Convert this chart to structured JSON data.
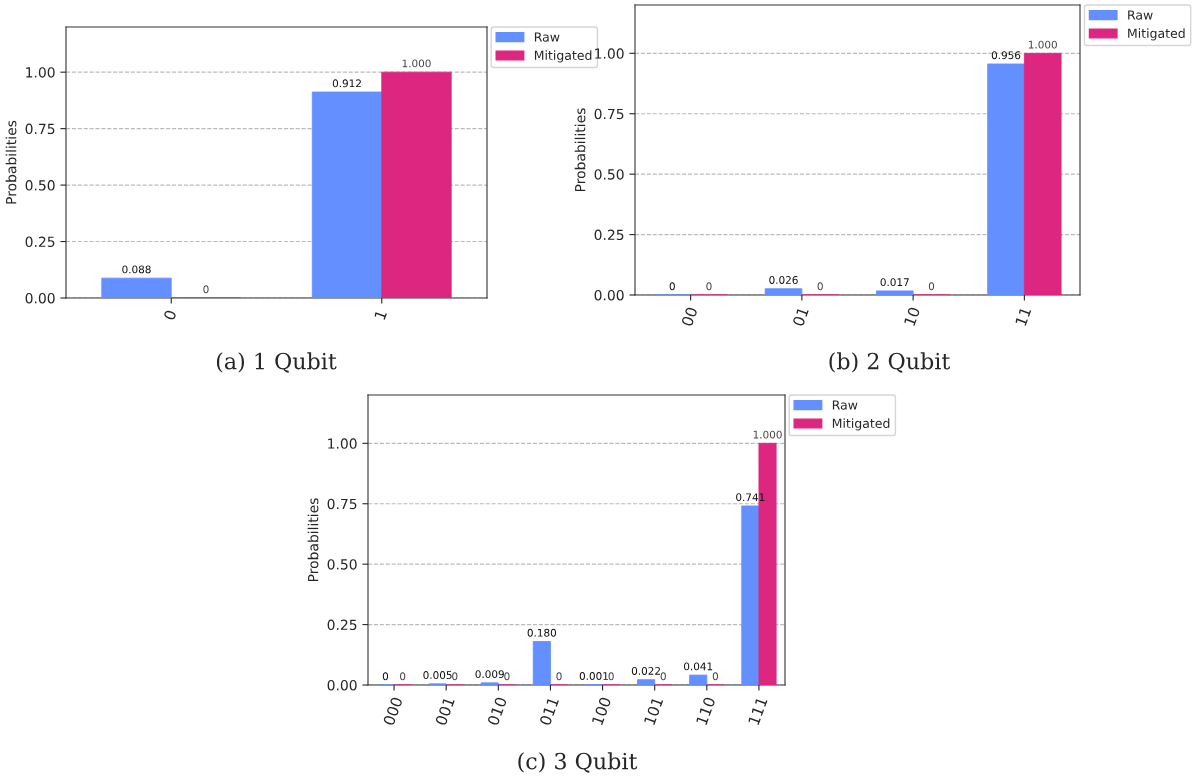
{
  "chart_data": [
    {
      "type": "bar",
      "ylabel": "Probabilities",
      "categories": [
        "0",
        "1"
      ],
      "ylim": [
        0,
        1.2
      ],
      "yticks": [
        {
          "value": 0,
          "label": "0.00"
        },
        {
          "value": 0.25,
          "label": "0.25"
        },
        {
          "value": 0.5,
          "label": "0.50"
        },
        {
          "value": 0.75,
          "label": "0.75"
        },
        {
          "value": 1,
          "label": "1.00"
        }
      ],
      "grid": "y",
      "legend": "top right",
      "annotations": [
        "(a) 1 Qubit"
      ],
      "series": [
        {
          "name": "Raw",
          "color": "#648fff",
          "values": [
            0.088,
            0.912
          ],
          "value_labels": [
            "0.088",
            "0.912"
          ]
        },
        {
          "name": "Mitigated",
          "color": "#dc267f",
          "values": [
            0,
            1.0
          ],
          "value_labels": [
            "0",
            "1.000"
          ]
        }
      ]
    },
    {
      "type": "bar",
      "ylabel": "Probabilities",
      "categories": [
        "00",
        "01",
        "10",
        "11"
      ],
      "ylim": [
        0,
        1.2
      ],
      "yticks": [
        {
          "value": 0,
          "label": "0.00"
        },
        {
          "value": 0.25,
          "label": "0.25"
        },
        {
          "value": 0.5,
          "label": "0.50"
        },
        {
          "value": 0.75,
          "label": "0.75"
        },
        {
          "value": 1,
          "label": "1.00"
        }
      ],
      "grid": "y",
      "legend": "top right",
      "annotations": [
        "(b) 2 Qubit"
      ],
      "series": [
        {
          "name": "Raw",
          "color": "#648fff",
          "values": [
            0,
            0.026,
            0.017,
            0.956
          ],
          "value_labels": [
            "0",
            "0.026",
            "0.017",
            "0.956"
          ]
        },
        {
          "name": "Mitigated",
          "color": "#dc267f",
          "values": [
            0,
            0,
            0,
            1.0
          ],
          "value_labels": [
            "0",
            "0",
            "0",
            "1.000"
          ]
        }
      ]
    },
    {
      "type": "bar",
      "ylabel": "Probabilities",
      "categories": [
        "000",
        "001",
        "010",
        "011",
        "100",
        "101",
        "110",
        "111"
      ],
      "ylim": [
        0,
        1.2
      ],
      "yticks": [
        {
          "value": 0,
          "label": "0.00"
        },
        {
          "value": 0.25,
          "label": "0.25"
        },
        {
          "value": 0.5,
          "label": "0.50"
        },
        {
          "value": 0.75,
          "label": "0.75"
        },
        {
          "value": 1,
          "label": "1.00"
        }
      ],
      "grid": "y",
      "legend": "top right",
      "annotations": [
        "(c) 3 Qubit"
      ],
      "series": [
        {
          "name": "Raw",
          "color": "#648fff",
          "values": [
            0,
            0.005,
            0.009,
            0.18,
            0.001,
            0.022,
            0.041,
            0.741
          ],
          "value_labels": [
            "0",
            "0.005",
            "0.009",
            "0.180",
            "0.001",
            "0.022",
            "0.041",
            "0.741"
          ]
        },
        {
          "name": "Mitigated",
          "color": "#dc267f",
          "values": [
            0,
            0,
            0,
            0,
            0,
            0,
            0,
            1.0
          ],
          "value_labels": [
            "0",
            "0",
            "0",
            "0",
            "0",
            "0",
            "0",
            "1.000"
          ]
        }
      ]
    }
  ]
}
